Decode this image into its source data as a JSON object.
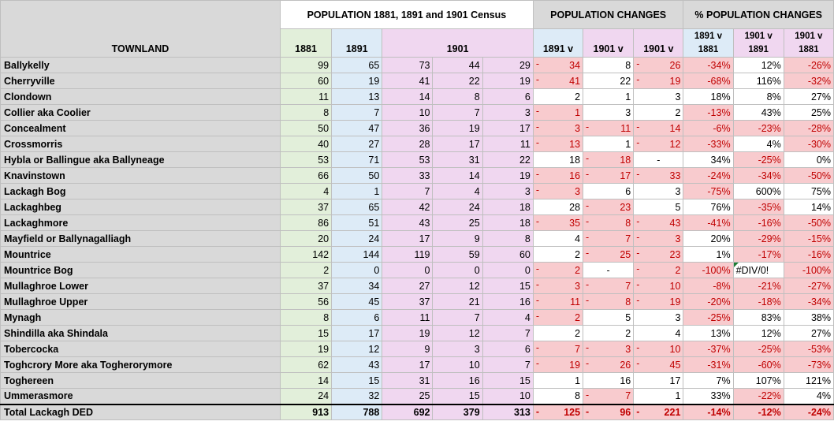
{
  "headers": {
    "townland": "TOWNLAND",
    "population_group": "POPULATION 1881, 1891 and 1901 Census",
    "changes_group": "POPULATION CHANGES",
    "pct_group": "% POPULATION CHANGES",
    "col_1881": "1881",
    "col_1891": "1891",
    "col_1901": "1901",
    "chg_1891v": "1891 v",
    "chg_1901v_a": "1901 v",
    "chg_1901v_b": "1901 v",
    "pct_a_line1": "1891 v",
    "pct_a_line2": "1881",
    "pct_b_line1": "1901 v",
    "pct_b_line2": "1891",
    "pct_c_line1": "1901 v",
    "pct_c_line2": "1881"
  },
  "colors": {
    "green": "#e2efda",
    "blue": "#ddebf7",
    "purple": "#f0d7f0",
    "negative_fill": "#f8cbce",
    "negative_text": "#c00000",
    "header_grey": "#d9d9d9"
  },
  "rows": [
    {
      "name": "Ballykelly",
      "p1881": "99",
      "p1891": "65",
      "p1901a": "73",
      "p1901b": "44",
      "p1901c": "29",
      "c1": "34",
      "c1neg": true,
      "c2": "8",
      "c2neg": false,
      "c3": "26",
      "c3neg": true,
      "pa": "-34%",
      "pb": "12%",
      "pc": "-26%"
    },
    {
      "name": "Cherryville",
      "p1881": "60",
      "p1891": "19",
      "p1901a": "41",
      "p1901b": "22",
      "p1901c": "19",
      "c1": "41",
      "c1neg": true,
      "c2": "22",
      "c2neg": false,
      "c3": "19",
      "c3neg": true,
      "pa": "-68%",
      "pb": "116%",
      "pc": "-32%"
    },
    {
      "name": "Clondown",
      "p1881": "11",
      "p1891": "13",
      "p1901a": "14",
      "p1901b": "8",
      "p1901c": "6",
      "c1": "2",
      "c1neg": false,
      "c2": "1",
      "c2neg": false,
      "c3": "3",
      "c3neg": false,
      "pa": "18%",
      "pb": "8%",
      "pc": "27%"
    },
    {
      "name": "Collier aka Coolier",
      "p1881": "8",
      "p1891": "7",
      "p1901a": "10",
      "p1901b": "7",
      "p1901c": "3",
      "c1": "1",
      "c1neg": true,
      "c2": "3",
      "c2neg": false,
      "c3": "2",
      "c3neg": false,
      "pa": "-13%",
      "pb": "43%",
      "pc": "25%"
    },
    {
      "name": "Concealment",
      "p1881": "50",
      "p1891": "47",
      "p1901a": "36",
      "p1901b": "19",
      "p1901c": "17",
      "c1": "3",
      "c1neg": true,
      "c2": "11",
      "c2neg": true,
      "c3": "14",
      "c3neg": true,
      "pa": "-6%",
      "pb": "-23%",
      "pc": "-28%"
    },
    {
      "name": "Crossmorris",
      "p1881": "40",
      "p1891": "27",
      "p1901a": "28",
      "p1901b": "17",
      "p1901c": "11",
      "c1": "13",
      "c1neg": true,
      "c2": "1",
      "c2neg": false,
      "c3": "12",
      "c3neg": true,
      "pa": "-33%",
      "pb": "4%",
      "pc": "-30%"
    },
    {
      "name": "Hybla or Ballingue aka Ballyneage",
      "p1881": "53",
      "p1891": "71",
      "p1901a": "53",
      "p1901b": "31",
      "p1901c": "22",
      "c1": "18",
      "c1neg": false,
      "c2": "18",
      "c2neg": true,
      "c3": "-",
      "c3neg": false,
      "c3center": true,
      "pa": "34%",
      "pb": "-25%",
      "pc": "0%"
    },
    {
      "name": "Knavinstown",
      "p1881": "66",
      "p1891": "50",
      "p1901a": "33",
      "p1901b": "14",
      "p1901c": "19",
      "c1": "16",
      "c1neg": true,
      "c2": "17",
      "c2neg": true,
      "c3": "33",
      "c3neg": true,
      "pa": "-24%",
      "pb": "-34%",
      "pc": "-50%"
    },
    {
      "name": "Lackagh Bog",
      "p1881": "4",
      "p1891": "1",
      "p1901a": "7",
      "p1901b": "4",
      "p1901c": "3",
      "c1": "3",
      "c1neg": true,
      "c2": "6",
      "c2neg": false,
      "c3": "3",
      "c3neg": false,
      "pa": "-75%",
      "pb": "600%",
      "pc": "75%"
    },
    {
      "name": "Lackaghbeg",
      "p1881": "37",
      "p1891": "65",
      "p1901a": "42",
      "p1901b": "24",
      "p1901c": "18",
      "c1": "28",
      "c1neg": false,
      "c2": "23",
      "c2neg": true,
      "c3": "5",
      "c3neg": false,
      "pa": "76%",
      "pb": "-35%",
      "pc": "14%"
    },
    {
      "name": "Lackaghmore",
      "p1881": "86",
      "p1891": "51",
      "p1901a": "43",
      "p1901b": "25",
      "p1901c": "18",
      "c1": "35",
      "c1neg": true,
      "c2": "8",
      "c2neg": true,
      "c3": "43",
      "c3neg": true,
      "pa": "-41%",
      "pb": "-16%",
      "pc": "-50%"
    },
    {
      "name": "Mayfield or Ballynagalliagh",
      "p1881": "20",
      "p1891": "24",
      "p1901a": "17",
      "p1901b": "9",
      "p1901c": "8",
      "c1": "4",
      "c1neg": false,
      "c2": "7",
      "c2neg": true,
      "c3": "3",
      "c3neg": true,
      "pa": "20%",
      "pb": "-29%",
      "pc": "-15%"
    },
    {
      "name": "Mountrice",
      "p1881": "142",
      "p1891": "144",
      "p1901a": "119",
      "p1901b": "59",
      "p1901c": "60",
      "c1": "2",
      "c1neg": false,
      "c2": "25",
      "c2neg": true,
      "c3": "23",
      "c3neg": true,
      "pa": "1%",
      "pb": "-17%",
      "pc": "-16%"
    },
    {
      "name": "Mountrice Bog",
      "p1881": "2",
      "p1891": "0",
      "p1901a": "0",
      "p1901b": "0",
      "p1901c": "0",
      "c1": "2",
      "c1neg": true,
      "c2": "-",
      "c2neg": false,
      "c2center": true,
      "c3": "2",
      "c3neg": true,
      "pa": "-100%",
      "pb": "#DIV/0!",
      "pbdiv": true,
      "pc": "-100%"
    },
    {
      "name": "Mullaghroe Lower",
      "p1881": "37",
      "p1891": "34",
      "p1901a": "27",
      "p1901b": "12",
      "p1901c": "15",
      "c1": "3",
      "c1neg": true,
      "c2": "7",
      "c2neg": true,
      "c3": "10",
      "c3neg": true,
      "pa": "-8%",
      "pb": "-21%",
      "pc": "-27%"
    },
    {
      "name": "Mullaghroe Upper",
      "p1881": "56",
      "p1891": "45",
      "p1901a": "37",
      "p1901b": "21",
      "p1901c": "16",
      "c1": "11",
      "c1neg": true,
      "c2": "8",
      "c2neg": true,
      "c3": "19",
      "c3neg": true,
      "pa": "-20%",
      "pb": "-18%",
      "pc": "-34%"
    },
    {
      "name": "Mynagh",
      "p1881": "8",
      "p1891": "6",
      "p1901a": "11",
      "p1901b": "7",
      "p1901c": "4",
      "c1": "2",
      "c1neg": true,
      "c2": "5",
      "c2neg": false,
      "c3": "3",
      "c3neg": false,
      "pa": "-25%",
      "pb": "83%",
      "pc": "38%"
    },
    {
      "name": "Shindilla aka Shindala",
      "p1881": "15",
      "p1891": "17",
      "p1901a": "19",
      "p1901b": "12",
      "p1901c": "7",
      "c1": "2",
      "c1neg": false,
      "c2": "2",
      "c2neg": false,
      "c3": "4",
      "c3neg": false,
      "pa": "13%",
      "pb": "12%",
      "pc": "27%"
    },
    {
      "name": "Tobercocka",
      "p1881": "19",
      "p1891": "12",
      "p1901a": "9",
      "p1901b": "3",
      "p1901c": "6",
      "c1": "7",
      "c1neg": true,
      "c2": "3",
      "c2neg": true,
      "c3": "10",
      "c3neg": true,
      "pa": "-37%",
      "pb": "-25%",
      "pc": "-53%"
    },
    {
      "name": "Toghcrory More aka Togherorymore",
      "p1881": "62",
      "p1891": "43",
      "p1901a": "17",
      "p1901b": "10",
      "p1901c": "7",
      "c1": "19",
      "c1neg": true,
      "c2": "26",
      "c2neg": true,
      "c3": "45",
      "c3neg": true,
      "pa": "-31%",
      "pb": "-60%",
      "pc": "-73%"
    },
    {
      "name": "Toghereen",
      "p1881": "14",
      "p1891": "15",
      "p1901a": "31",
      "p1901b": "16",
      "p1901c": "15",
      "c1": "1",
      "c1neg": false,
      "c2": "16",
      "c2neg": false,
      "c3": "17",
      "c3neg": false,
      "pa": "7%",
      "pb": "107%",
      "pc": "121%"
    },
    {
      "name": "Ummerasmore",
      "p1881": "24",
      "p1891": "32",
      "p1901a": "25",
      "p1901b": "15",
      "p1901c": "10",
      "c1": "8",
      "c1neg": false,
      "c2": "7",
      "c2neg": true,
      "c3": "1",
      "c3neg": false,
      "pa": "33%",
      "pb": "-22%",
      "pc": "4%"
    }
  ],
  "total": {
    "name": "Total Lackagh DED",
    "p1881": "913",
    "p1891": "788",
    "p1901a": "692",
    "p1901b": "379",
    "p1901c": "313",
    "c1": "125",
    "c1neg": true,
    "c2": "96",
    "c2neg": true,
    "c3": "221",
    "c3neg": true,
    "pa": "-14%",
    "pb": "-12%",
    "pc": "-24%"
  }
}
